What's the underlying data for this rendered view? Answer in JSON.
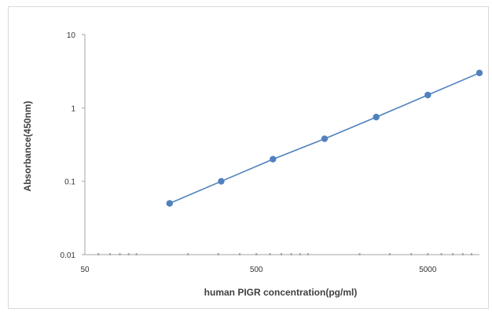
{
  "chart_data": {
    "type": "line",
    "title": "",
    "xlabel": "human PIGR concentration(pg/ml)",
    "ylabel": "Absorbance(450nm)",
    "x_scale": "log",
    "y_scale": "log",
    "xlim": [
      50,
      10000
    ],
    "ylim": [
      0.01,
      10
    ],
    "x_ticks": [
      "50",
      "500",
      "5000"
    ],
    "y_ticks": [
      "0.01",
      "0.1",
      "1",
      "10"
    ],
    "grid": false,
    "legend": "none",
    "series": [
      {
        "x": [
          156,
          312,
          625,
          1250,
          2500,
          5000,
          10000
        ],
        "y": [
          0.05,
          0.1,
          0.2,
          0.38,
          0.75,
          1.5,
          3.0
        ]
      }
    ],
    "colors": {
      "line": "#4f81bd",
      "marker": "#4f81bd",
      "axis": "#a6a6a6"
    }
  }
}
